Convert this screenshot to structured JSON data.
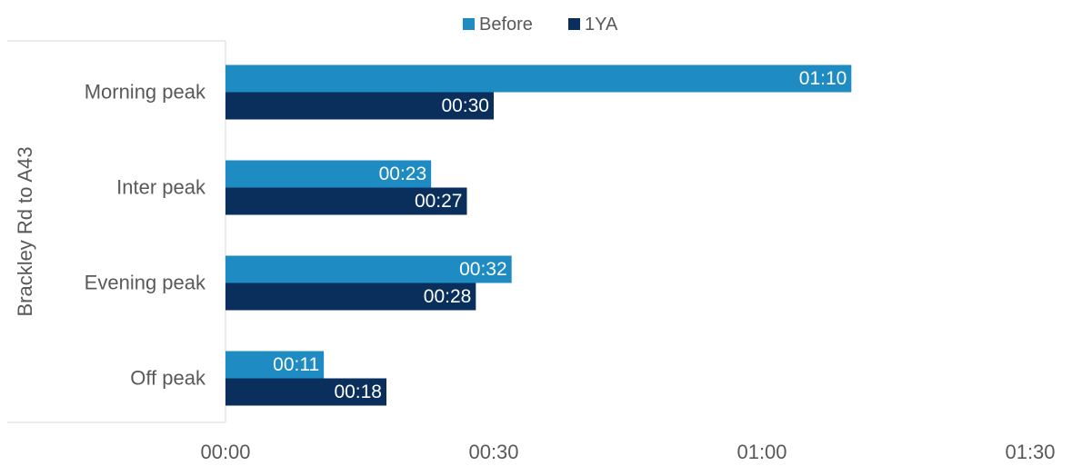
{
  "chart_data": {
    "type": "bar",
    "orientation": "horizontal",
    "group_label": "Brackley Rd to A43",
    "categories": [
      "Morning peak",
      "Inter peak",
      "Evening peak",
      "Off peak"
    ],
    "series": [
      {
        "name": "Before",
        "color": "#1E8BC3",
        "values": [
          70,
          23,
          32,
          11
        ],
        "labels": [
          "01:10",
          "00:23",
          "00:32",
          "00:11"
        ]
      },
      {
        "name": "1YA",
        "color": "#0A2F5C",
        "values": [
          30,
          27,
          28,
          18
        ],
        "labels": [
          "00:30",
          "00:27",
          "00:28",
          "00:18"
        ]
      }
    ],
    "value_unit": "minutes",
    "xlim": [
      0,
      90
    ],
    "xticks": [
      0,
      30,
      60,
      90
    ],
    "xtick_labels": [
      "00:00",
      "00:30",
      "01:00",
      "01:30"
    ],
    "legend_position": "top-center",
    "grid": false
  }
}
